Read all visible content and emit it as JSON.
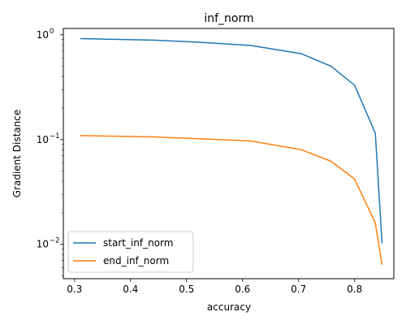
{
  "chart_data": {
    "type": "line",
    "title": "inf_norm",
    "xlabel": "accuracy",
    "ylabel": "Gradient Distance",
    "xlim": [
      0.28,
      0.87
    ],
    "ylim": [
      0.0047,
      1.15
    ],
    "yscale": "log",
    "grid": false,
    "legend_position": "lower-left",
    "x_ticks": [
      {
        "value": 0.3,
        "label": "0.3"
      },
      {
        "value": 0.4,
        "label": "0.4"
      },
      {
        "value": 0.5,
        "label": "0.5"
      },
      {
        "value": 0.6,
        "label": "0.6"
      },
      {
        "value": 0.7,
        "label": "0.7"
      },
      {
        "value": 0.8,
        "label": "0.8"
      }
    ],
    "y_ticks": [
      {
        "value": 0.01,
        "base": "10",
        "exp": "−2"
      },
      {
        "value": 0.1,
        "base": "10",
        "exp": "−1"
      },
      {
        "value": 1,
        "base": "10",
        "exp": "0"
      }
    ],
    "x": [
      0.31,
      0.44,
      0.52,
      0.615,
      0.705,
      0.758,
      0.8,
      0.837,
      0.849
    ],
    "series": [
      {
        "name": "start_inf_norm",
        "color": "#1f77b4",
        "values": [
          0.92,
          0.89,
          0.85,
          0.79,
          0.66,
          0.5,
          0.33,
          0.115,
          0.0102
        ]
      },
      {
        "name": "end_inf_norm",
        "color": "#ff7f0e",
        "values": [
          0.109,
          0.106,
          0.102,
          0.097,
          0.08,
          0.062,
          0.042,
          0.016,
          0.0064
        ]
      }
    ]
  }
}
